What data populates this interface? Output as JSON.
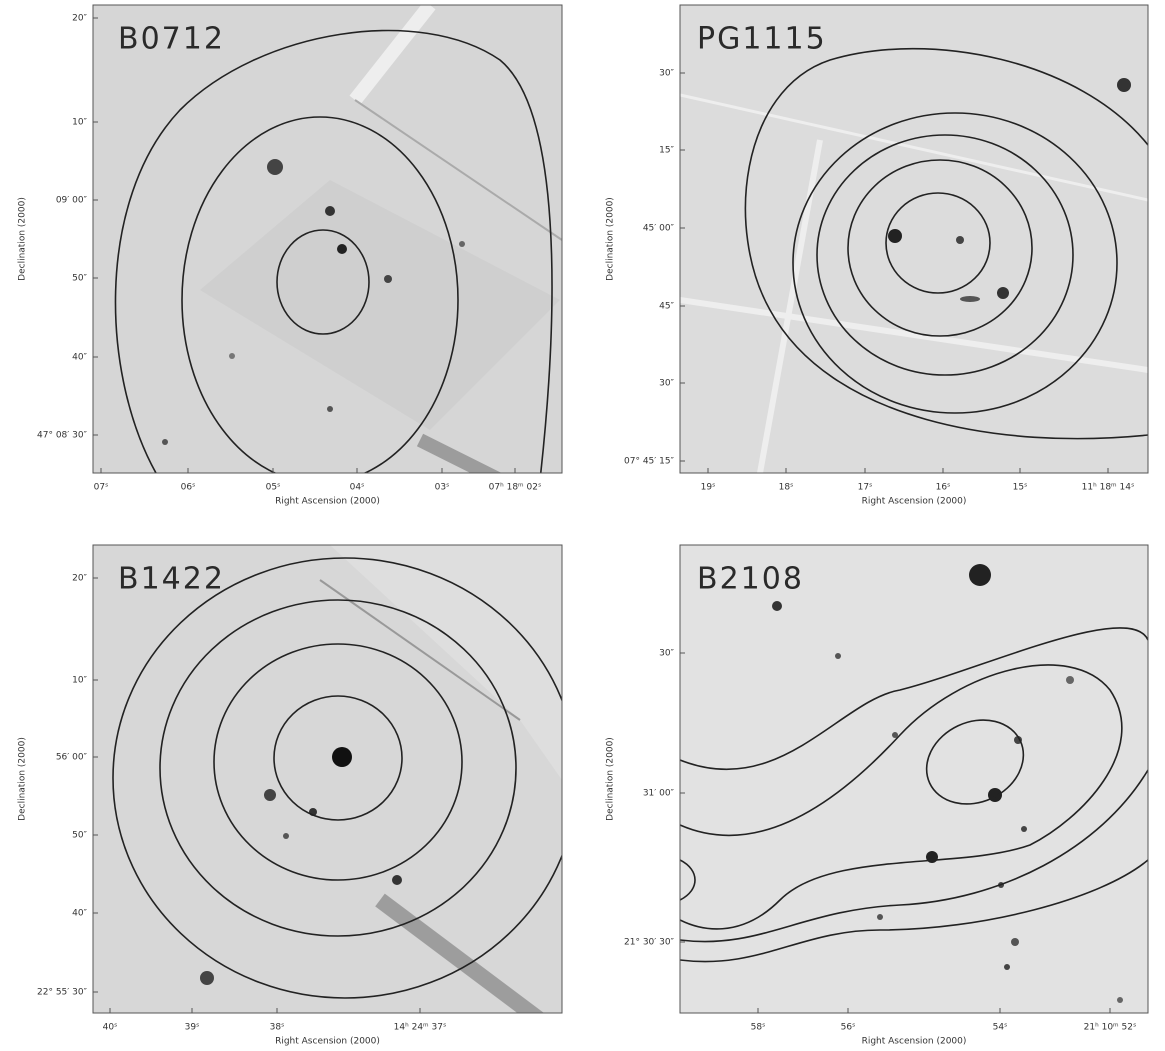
{
  "panels": [
    {
      "name": "B0712",
      "x_label": "Right Ascension (2000)",
      "y_label": "Declination (2000)",
      "x_ticks": [
        "07ˢ",
        "06ˢ",
        "05ˢ",
        "04ˢ",
        "03ˢ",
        "07ʰ 18ᵐ 02ˢ"
      ],
      "y_ticks": [
        "20″",
        "10″",
        "09′ 00″",
        "50″",
        "40″",
        "47° 08′ 30″"
      ]
    },
    {
      "name": "PG1115",
      "x_label": "Right Ascension (2000)",
      "y_label": "Declination (2000)",
      "x_ticks": [
        "19ˢ",
        "18ˢ",
        "17ˢ",
        "16ˢ",
        "15ˢ",
        "11ʰ 18ᵐ 14ˢ"
      ],
      "y_ticks": [
        "30″",
        "15″",
        "45′ 00″",
        "45″",
        "30″",
        "07° 45′ 15″"
      ]
    },
    {
      "name": "B1422",
      "x_label": "Right Ascension (2000)",
      "y_label": "Declination (2000)",
      "x_ticks": [
        "40ˢ",
        "39ˢ",
        "38ˢ",
        "14ʰ 24ᵐ 37ˢ"
      ],
      "y_ticks": [
        "20″",
        "10″",
        "56′ 00″",
        "50″",
        "40″",
        "22° 55′ 30″"
      ]
    },
    {
      "name": "B2108",
      "x_label": "Right Ascension (2000)",
      "y_label": "Declination (2000)",
      "x_ticks": [
        "58ˢ",
        "56ˢ",
        "54ˢ",
        "21ʰ 10ᵐ 52ˢ"
      ],
      "y_ticks": [
        "30″",
        "31′ 00″",
        "21° 30′ 30″"
      ]
    }
  ]
}
